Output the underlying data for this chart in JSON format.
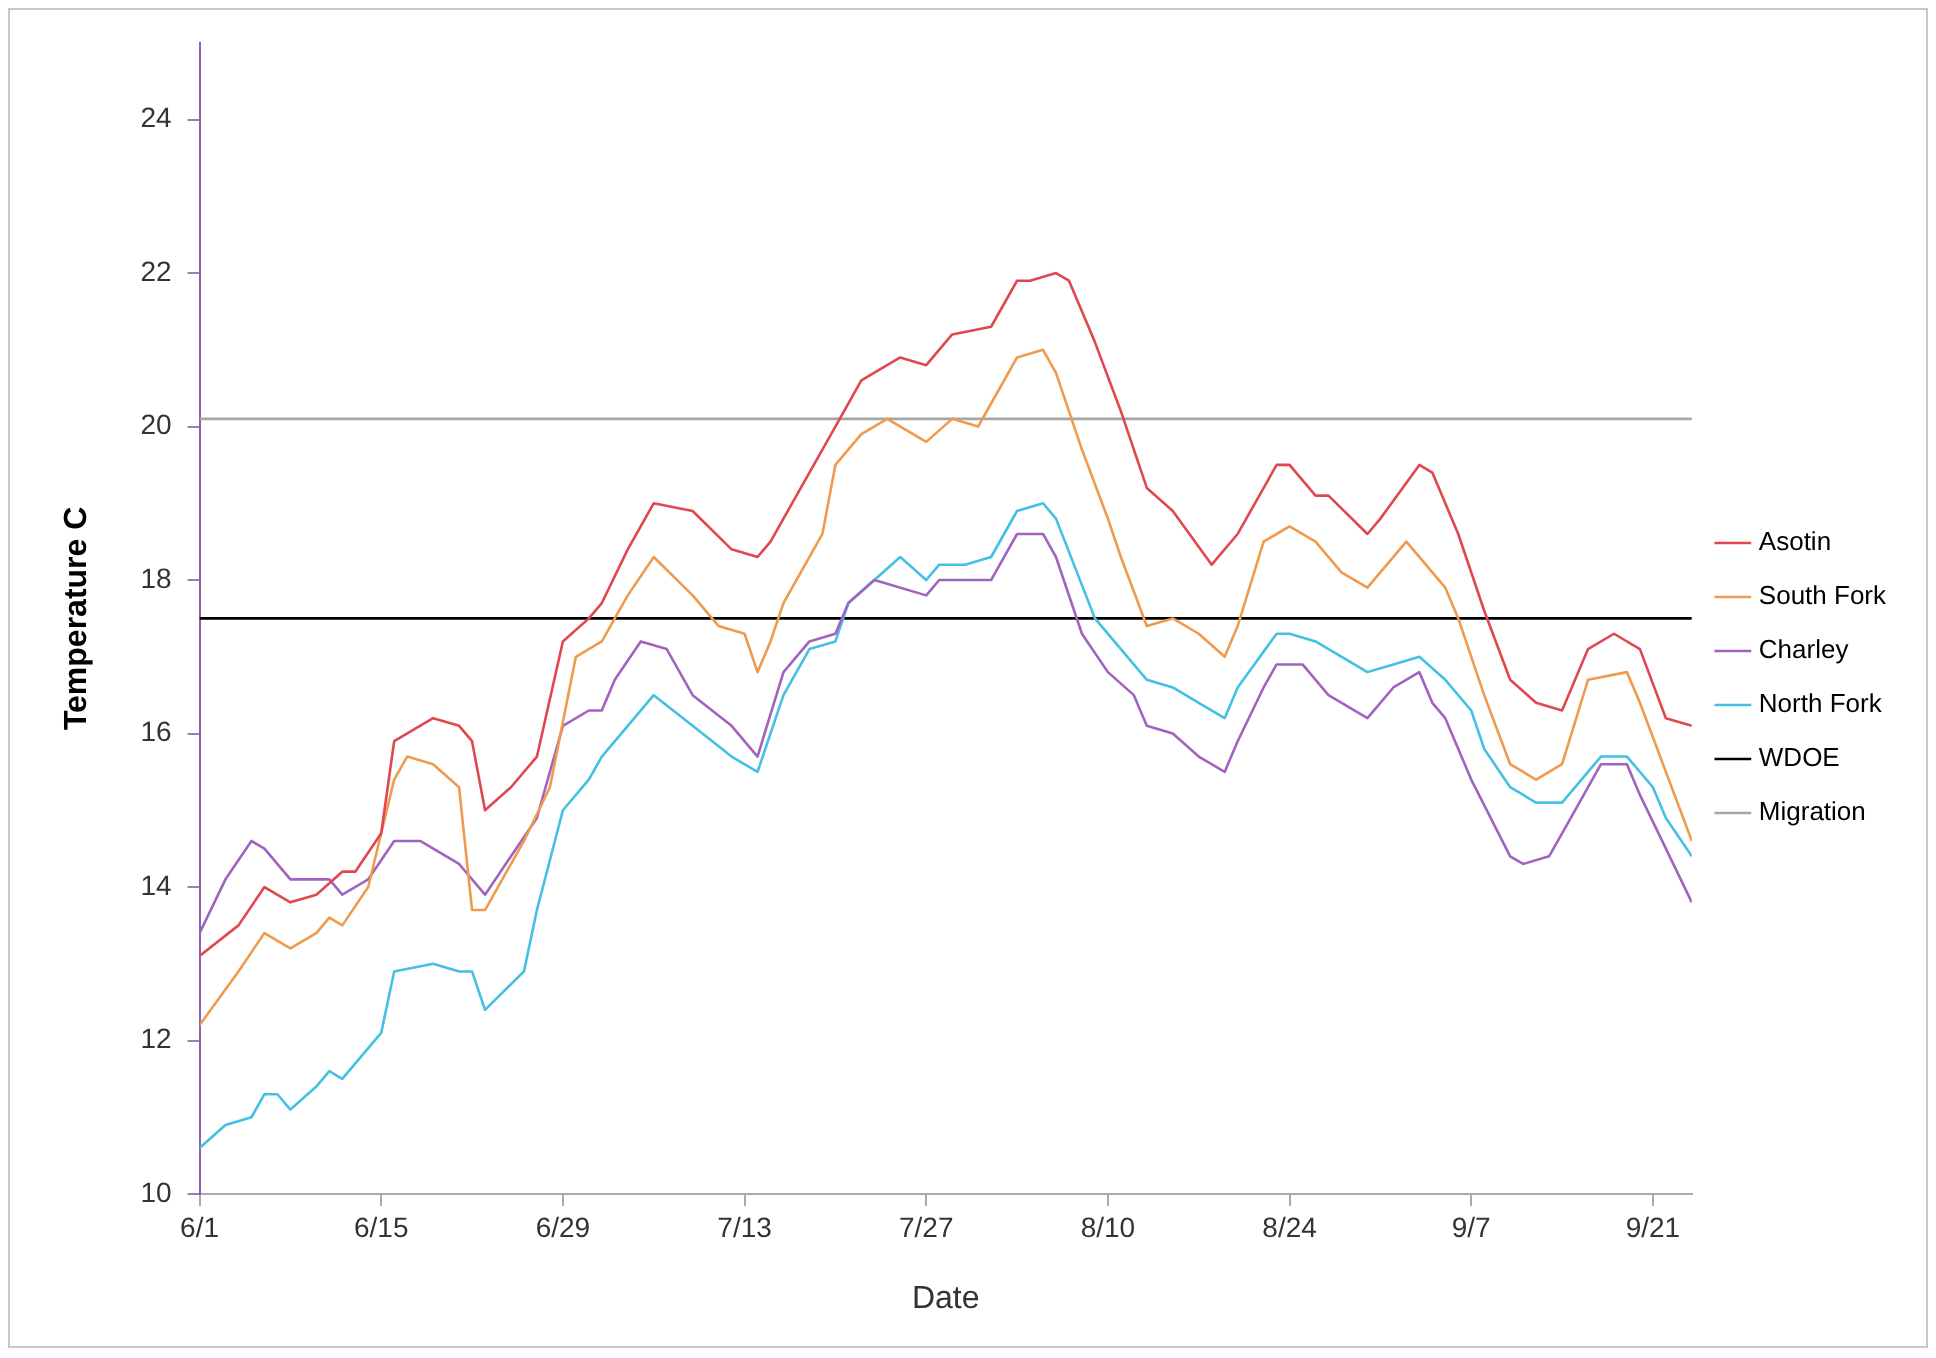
{
  "chart_data": {
    "type": "line",
    "xlabel": "Date",
    "ylabel": "Temperature C",
    "xlim": [
      "--06-01",
      "--09-24"
    ],
    "ylim": [
      10,
      25
    ],
    "yticks": [
      10,
      12,
      14,
      16,
      18,
      20,
      22,
      24
    ],
    "xticks": [
      {
        "value": "--06-01",
        "label": "6/1"
      },
      {
        "value": "--06-15",
        "label": "6/15"
      },
      {
        "value": "--06-29",
        "label": "6/29"
      },
      {
        "value": "--07-13",
        "label": "7/13"
      },
      {
        "value": "--07-27",
        "label": "7/27"
      },
      {
        "value": "--08-10",
        "label": "8/10"
      },
      {
        "value": "--08-24",
        "label": "8/24"
      },
      {
        "value": "--09-07",
        "label": "9/7"
      },
      {
        "value": "--09-21",
        "label": "9/21"
      }
    ],
    "grid": false,
    "legend": "right",
    "marker": "none",
    "line_style": "solid",
    "series": [
      {
        "name": "Asotin",
        "color": "#e0474f",
        "x": [
          "--06-01",
          "--06-04",
          "--06-06",
          "--06-08",
          "--06-10",
          "--06-12",
          "--06-13",
          "--06-15",
          "--06-16",
          "--06-19",
          "--06-21",
          "--06-22",
          "--06-23",
          "--06-25",
          "--06-27",
          "--06-29",
          "--07-01",
          "--07-02",
          "--07-04",
          "--07-06",
          "--07-09",
          "--07-12",
          "--07-14",
          "--07-15",
          "--07-17",
          "--07-19",
          "--07-20",
          "--07-22",
          "--07-25",
          "--07-27",
          "--07-29",
          "--08-01",
          "--08-03",
          "--08-04",
          "--08-06",
          "--08-07",
          "--08-09",
          "--08-11",
          "--08-13",
          "--08-15",
          "--08-18",
          "--08-20",
          "--08-23",
          "--08-24",
          "--08-26",
          "--08-27",
          "--08-30",
          "--08-31",
          "--09-03",
          "--09-04",
          "--09-06",
          "--09-08",
          "--09-10",
          "--09-12",
          "--09-14",
          "--09-16",
          "--09-18",
          "--09-20",
          "--09-22",
          "--09-24"
        ],
        "values": [
          13.1,
          13.5,
          14.0,
          13.8,
          13.9,
          14.2,
          14.2,
          14.7,
          15.9,
          16.2,
          16.1,
          15.9,
          15.0,
          15.3,
          15.7,
          17.2,
          17.5,
          17.7,
          18.4,
          19.0,
          18.9,
          18.4,
          18.3,
          18.5,
          19.1,
          19.7,
          20.0,
          20.6,
          20.9,
          20.8,
          21.2,
          21.3,
          21.9,
          21.9,
          22.0,
          21.9,
          21.1,
          20.2,
          19.2,
          18.9,
          18.2,
          18.6,
          19.5,
          19.5,
          19.1,
          19.1,
          18.6,
          18.8,
          19.5,
          19.4,
          18.6,
          17.6,
          16.7,
          16.4,
          16.3,
          17.1,
          17.3,
          17.1,
          16.2,
          16.1
        ]
      },
      {
        "name": "South Fork",
        "color": "#f09a4e",
        "x": [
          "--06-01",
          "--06-04",
          "--06-06",
          "--06-08",
          "--06-10",
          "--06-11",
          "--06-12",
          "--06-14",
          "--06-16",
          "--06-17",
          "--06-19",
          "--06-21",
          "--06-22",
          "--06-23",
          "--06-26",
          "--06-28",
          "--06-30",
          "--07-01",
          "--07-02",
          "--07-04",
          "--07-06",
          "--07-09",
          "--07-11",
          "--07-13",
          "--07-14",
          "--07-15",
          "--07-16",
          "--07-19",
          "--07-20",
          "--07-22",
          "--07-24",
          "--07-27",
          "--07-29",
          "--07-31",
          "--08-01",
          "--08-03",
          "--08-05",
          "--08-06",
          "--08-08",
          "--08-10",
          "--08-11",
          "--08-13",
          "--08-15",
          "--08-17",
          "--08-19",
          "--08-20",
          "--08-22",
          "--08-24",
          "--08-26",
          "--08-28",
          "--08-30",
          "--09-02",
          "--09-05",
          "--09-06",
          "--09-08",
          "--09-10",
          "--09-12",
          "--09-14",
          "--09-16",
          "--09-19",
          "--09-20",
          "--09-22",
          "--09-24"
        ],
        "values": [
          12.2,
          12.9,
          13.4,
          13.2,
          13.4,
          13.6,
          13.5,
          14.0,
          15.4,
          15.7,
          15.6,
          15.3,
          13.7,
          13.7,
          14.6,
          15.3,
          17.0,
          17.1,
          17.2,
          17.8,
          18.3,
          17.8,
          17.4,
          17.3,
          16.8,
          17.2,
          17.7,
          18.6,
          19.5,
          19.9,
          20.1,
          19.8,
          20.1,
          20.0,
          20.3,
          20.9,
          21.0,
          20.7,
          19.7,
          18.8,
          18.3,
          17.4,
          17.5,
          17.3,
          17.0,
          17.4,
          18.5,
          18.7,
          18.5,
          18.1,
          17.9,
          18.5,
          17.9,
          17.5,
          16.5,
          15.6,
          15.4,
          15.6,
          16.7,
          16.8,
          16.4,
          15.5,
          14.6
        ]
      },
      {
        "name": "Charley",
        "color": "#a064c0",
        "x": [
          "--06-01",
          "--06-03",
          "--06-05",
          "--06-06",
          "--06-08",
          "--06-11",
          "--06-12",
          "--06-14",
          "--06-16",
          "--06-18",
          "--06-21",
          "--06-23",
          "--06-25",
          "--06-27",
          "--06-29",
          "--07-01",
          "--07-02",
          "--07-03",
          "--07-05",
          "--07-07",
          "--07-09",
          "--07-12",
          "--07-14",
          "--07-16",
          "--07-18",
          "--07-20",
          "--07-21",
          "--07-23",
          "--07-27",
          "--07-28",
          "--08-01",
          "--08-03",
          "--08-05",
          "--08-06",
          "--08-08",
          "--08-10",
          "--08-12",
          "--08-13",
          "--08-15",
          "--08-17",
          "--08-19",
          "--08-20",
          "--08-22",
          "--08-23",
          "--08-25",
          "--08-27",
          "--08-30",
          "--09-01",
          "--09-03",
          "--09-04",
          "--09-05",
          "--09-07",
          "--09-10",
          "--09-11",
          "--09-13",
          "--09-15",
          "--09-17",
          "--09-19",
          "--09-20",
          "--09-22",
          "--09-24"
        ],
        "values": [
          13.4,
          14.1,
          14.6,
          14.5,
          14.1,
          14.1,
          13.9,
          14.1,
          14.6,
          14.6,
          14.3,
          13.9,
          14.4,
          14.9,
          16.1,
          16.3,
          16.3,
          16.7,
          17.2,
          17.1,
          16.5,
          16.1,
          15.7,
          16.8,
          17.2,
          17.3,
          17.7,
          18.0,
          17.8,
          18.0,
          18.0,
          18.6,
          18.6,
          18.3,
          17.3,
          16.8,
          16.5,
          16.1,
          16.0,
          15.7,
          15.5,
          15.9,
          16.6,
          16.9,
          16.9,
          16.5,
          16.2,
          16.6,
          16.8,
          16.4,
          16.2,
          15.4,
          14.4,
          14.3,
          14.4,
          15.0,
          15.6,
          15.6,
          15.2,
          14.5,
          13.8
        ]
      },
      {
        "name": "North Fork",
        "color": "#44c0e4",
        "x": [
          "--06-01",
          "--06-03",
          "--06-05",
          "--06-06",
          "--06-07",
          "--06-08",
          "--06-10",
          "--06-11",
          "--06-12",
          "--06-14",
          "--06-15",
          "--06-16",
          "--06-19",
          "--06-21",
          "--06-22",
          "--06-23",
          "--06-26",
          "--06-27",
          "--06-29",
          "--07-01",
          "--07-02",
          "--07-04",
          "--07-06",
          "--07-09",
          "--07-12",
          "--07-14",
          "--07-16",
          "--07-18",
          "--07-20",
          "--07-21",
          "--07-23",
          "--07-25",
          "--07-27",
          "--07-28",
          "--07-30",
          "--08-01",
          "--08-03",
          "--08-05",
          "--08-06",
          "--08-09",
          "--08-11",
          "--08-13",
          "--08-15",
          "--08-17",
          "--08-19",
          "--08-20",
          "--08-23",
          "--08-24",
          "--08-26",
          "--08-30",
          "--09-01",
          "--09-03",
          "--09-05",
          "--09-07",
          "--09-08",
          "--09-10",
          "--09-12",
          "--09-14",
          "--09-16",
          "--09-17",
          "--09-19",
          "--09-21",
          "--09-22",
          "--09-24"
        ],
        "values": [
          10.6,
          10.9,
          11.0,
          11.3,
          11.3,
          11.1,
          11.4,
          11.6,
          11.5,
          11.9,
          12.1,
          12.9,
          13.0,
          12.9,
          12.9,
          12.4,
          12.9,
          13.7,
          15.0,
          15.4,
          15.7,
          16.1,
          16.5,
          16.1,
          15.7,
          15.5,
          16.5,
          17.1,
          17.2,
          17.7,
          18.0,
          18.3,
          18.0,
          18.2,
          18.2,
          18.3,
          18.9,
          19.0,
          18.8,
          17.5,
          17.1,
          16.7,
          16.6,
          16.4,
          16.2,
          16.6,
          17.3,
          17.3,
          17.2,
          16.8,
          16.9,
          17.0,
          16.7,
          16.3,
          15.8,
          15.3,
          15.1,
          15.1,
          15.5,
          15.7,
          15.7,
          15.3,
          14.9,
          14.4
        ]
      },
      {
        "name": "WDOE",
        "color": "#000000",
        "x": [
          "--06-01",
          "--09-24"
        ],
        "values": [
          17.5,
          17.5
        ]
      },
      {
        "name": "Migration",
        "color": "#a6a6a6",
        "x": [
          "--06-01",
          "--09-24"
        ],
        "values": [
          20.1,
          20.1
        ]
      }
    ]
  }
}
